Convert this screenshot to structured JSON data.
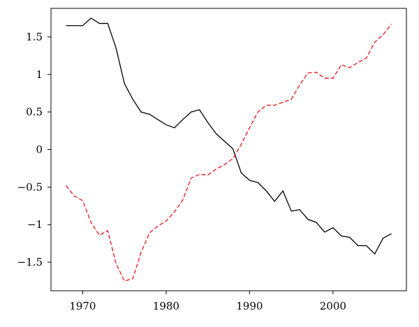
{
  "chart_data": {
    "type": "line",
    "title": "",
    "xlabel": "",
    "ylabel": "",
    "xlim": [
      1966.2,
      2008.8
    ],
    "ylim": [
      -1.88,
      1.88
    ],
    "xticks": [
      1970,
      1980,
      1990,
      2000
    ],
    "yticks": [
      1.5,
      1,
      0.5,
      0,
      -0.5,
      -1,
      -1.5
    ],
    "xtick_labels": [
      "1970",
      "1980",
      "1990",
      "2000"
    ],
    "ytick_labels": [
      "1.5",
      "1",
      "0.5",
      "0",
      "−0.5",
      "−1",
      "−1.5"
    ],
    "grid": false,
    "x": [
      1968,
      1969,
      1970,
      1971,
      1972,
      1973,
      1974,
      1975,
      1976,
      1977,
      1978,
      1979,
      1980,
      1981,
      1982,
      1983,
      1984,
      1985,
      1986,
      1987,
      1988,
      1989,
      1990,
      1991,
      1992,
      1993,
      1994,
      1995,
      1996,
      1997,
      1998,
      1999,
      2000,
      2001,
      2002,
      2003,
      2004,
      2005,
      2006,
      2007
    ],
    "series": [
      {
        "color": "#000000",
        "style": "solid",
        "values": [
          1.65,
          1.65,
          1.65,
          1.75,
          1.68,
          1.68,
          1.35,
          0.88,
          0.67,
          0.5,
          0.47,
          0.4,
          0.33,
          0.29,
          0.4,
          0.5,
          0.53,
          0.36,
          0.21,
          0.11,
          0.01,
          -0.31,
          -0.41,
          -0.44,
          -0.55,
          -0.69,
          -0.55,
          -0.82,
          -0.8,
          -0.93,
          -0.97,
          -1.1,
          -1.04,
          -1.15,
          -1.17,
          -1.28,
          -1.28,
          -1.39,
          -1.18,
          -1.12
        ]
      },
      {
        "color": "#e8141b",
        "style": "dashed",
        "values": [
          -0.48,
          -0.62,
          -0.68,
          -0.97,
          -1.14,
          -1.08,
          -1.52,
          -1.75,
          -1.72,
          -1.37,
          -1.11,
          -1.02,
          -0.95,
          -0.83,
          -0.67,
          -0.38,
          -0.33,
          -0.34,
          -0.26,
          -0.2,
          -0.12,
          0.07,
          0.29,
          0.5,
          0.59,
          0.59,
          0.63,
          0.67,
          0.86,
          1.02,
          1.03,
          0.95,
          0.95,
          1.13,
          1.09,
          1.16,
          1.22,
          1.43,
          1.53,
          1.67
        ]
      }
    ]
  }
}
